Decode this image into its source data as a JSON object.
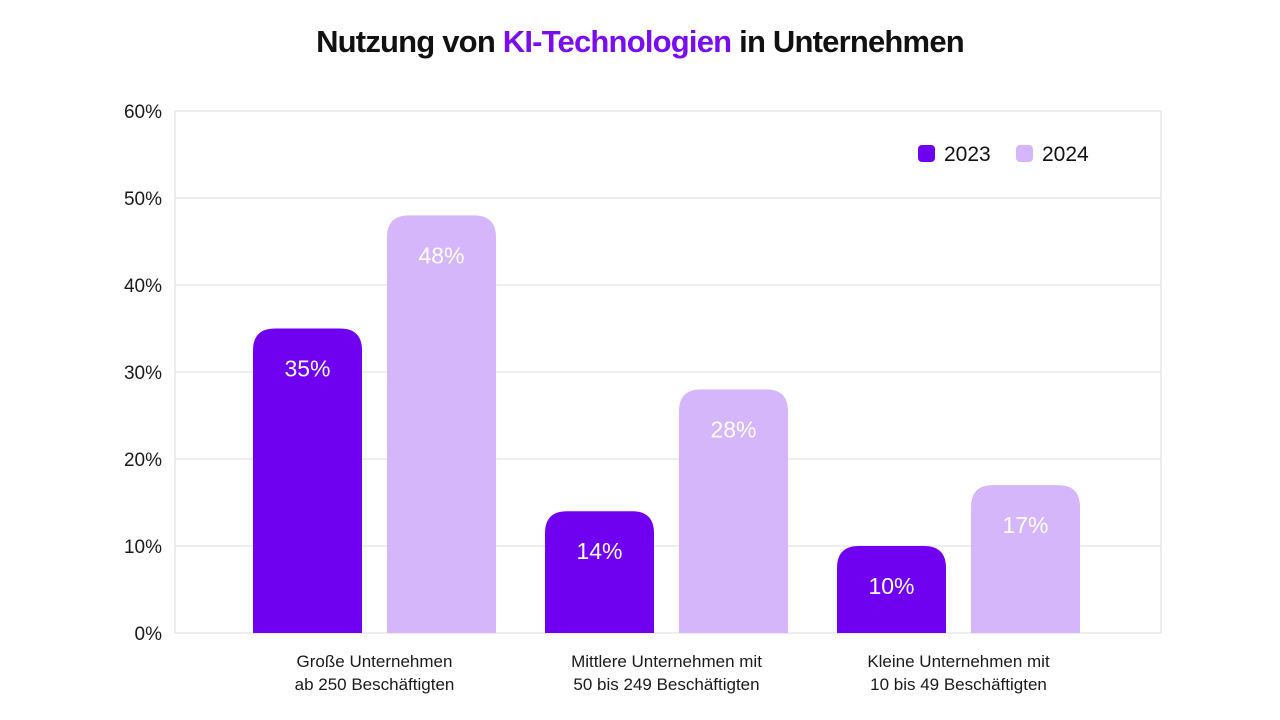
{
  "title": {
    "prefix": "Nutzung von ",
    "highlight": "KI-Technologien",
    "suffix": " in Unternehmen",
    "highlight_color": "#7a0cf0"
  },
  "chart_data": {
    "type": "bar",
    "title": "Nutzung von KI-Technologien in Unternehmen",
    "xlabel": "",
    "ylabel": "",
    "ylim": [
      0,
      60
    ],
    "yticks": [
      0,
      10,
      20,
      30,
      40,
      50,
      60
    ],
    "ytick_labels": [
      "0%",
      "10%",
      "20%",
      "30%",
      "40%",
      "50%",
      "60%"
    ],
    "grid": true,
    "legend_position": "top-right",
    "categories": [
      [
        "Große Unternehmen",
        "ab 250 Beschäftigten"
      ],
      [
        "Mittlere Unternehmen mit",
        "50 bis 249 Beschäftigten"
      ],
      [
        "Kleine Unternehmen mit",
        "10 bis 49 Beschäftigten"
      ]
    ],
    "series": [
      {
        "name": "2023",
        "color": "#7000f0",
        "values": [
          35,
          14,
          10
        ],
        "labels": [
          "35%",
          "14%",
          "10%"
        ]
      },
      {
        "name": "2024",
        "color": "#d6b6fb",
        "values": [
          48,
          28,
          17
        ],
        "labels": [
          "48%",
          "28%",
          "17%"
        ]
      }
    ]
  }
}
